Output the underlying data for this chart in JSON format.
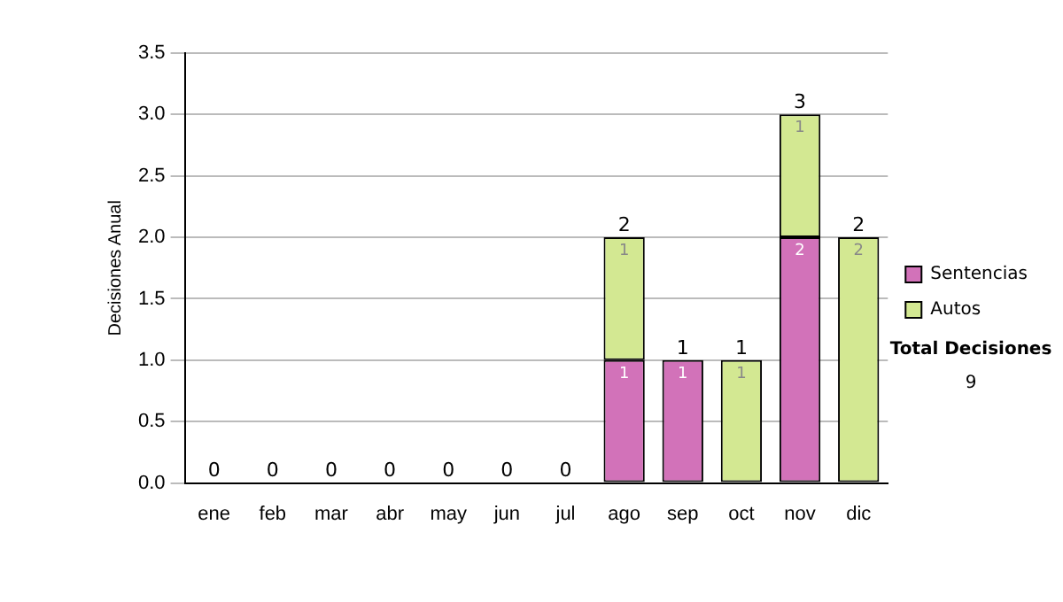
{
  "chart_data": {
    "type": "bar",
    "stacked": true,
    "ylabel": "Decisiones Anual",
    "categories": [
      "ene",
      "feb",
      "mar",
      "abr",
      "may",
      "jun",
      "jul",
      "ago",
      "sep",
      "oct",
      "nov",
      "dic"
    ],
    "series": [
      {
        "name": "Sentencias",
        "color": "#d272b9",
        "values": [
          0,
          0,
          0,
          0,
          0,
          0,
          0,
          1,
          1,
          0,
          2,
          0
        ],
        "value_labels": [
          null,
          null,
          null,
          null,
          null,
          null,
          null,
          "1",
          "1",
          null,
          "2",
          null
        ]
      },
      {
        "name": "Autos",
        "color": "#d3e892",
        "values": [
          0,
          0,
          0,
          0,
          0,
          0,
          0,
          1,
          0,
          1,
          1,
          2
        ],
        "value_labels": [
          null,
          null,
          null,
          null,
          null,
          null,
          null,
          "1",
          null,
          "1",
          "1",
          "2"
        ]
      }
    ],
    "totals": [
      "0",
      "0",
      "0",
      "0",
      "0",
      "0",
      "0",
      "2",
      "1",
      "1",
      "3",
      "2"
    ],
    "ylim": [
      0,
      3.5
    ],
    "yticks": [
      {
        "value": 0,
        "label": "0.0"
      },
      {
        "value": 0.5,
        "label": "0.5"
      },
      {
        "value": 1,
        "label": "1.0"
      },
      {
        "value": 1.5,
        "label": "1.5"
      },
      {
        "value": 2,
        "label": "2.0"
      },
      {
        "value": 2.5,
        "label": "2.5"
      },
      {
        "value": 3,
        "label": "3.0"
      },
      {
        "value": 3.5,
        "label": "3.5"
      }
    ],
    "grid": "y",
    "legend": "right",
    "annotations": [
      "Total Decisiones",
      "9"
    ]
  }
}
